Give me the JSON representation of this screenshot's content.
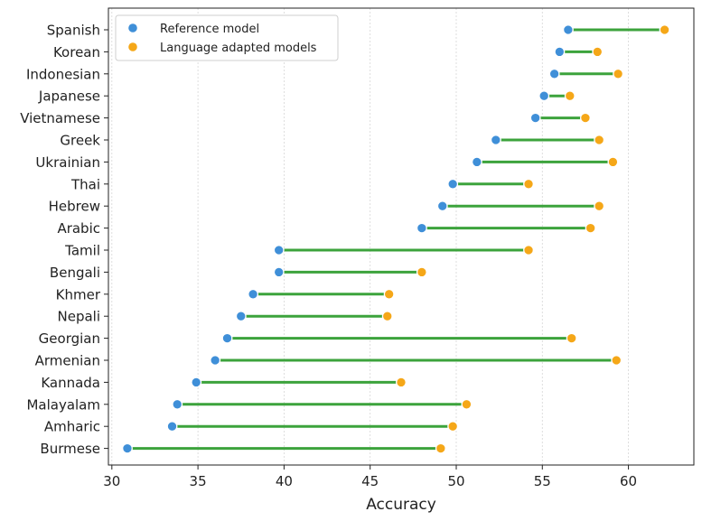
{
  "chart_data": {
    "type": "dumbbell",
    "title": "",
    "xlabel": "Accuracy",
    "ylabel": "",
    "xlim": [
      29.8,
      63.8
    ],
    "xticks": [
      30,
      35,
      40,
      45,
      50,
      55,
      60
    ],
    "grid": "vertical-dotted",
    "legend_placement": "top-left",
    "colors": {
      "reference": "#3f8fd8",
      "adapted": "#f5a718",
      "connector": "#3ca33c"
    },
    "legend": [
      "Reference model",
      "Language adapted models"
    ],
    "series": [
      {
        "name": "Reference model",
        "values": [
          56.5,
          56.0,
          55.7,
          55.1,
          54.6,
          52.3,
          51.2,
          49.8,
          49.2,
          48.0,
          39.7,
          39.7,
          38.2,
          37.5,
          36.7,
          36.0,
          34.9,
          33.8,
          33.5,
          30.9
        ]
      },
      {
        "name": "Language adapted models",
        "values": [
          62.1,
          58.2,
          59.4,
          56.6,
          57.5,
          58.3,
          59.1,
          54.2,
          58.3,
          57.8,
          54.2,
          48.0,
          46.1,
          46.0,
          56.7,
          59.3,
          46.8,
          50.6,
          49.8,
          49.1
        ]
      }
    ],
    "categories": [
      "Spanish",
      "Korean",
      "Indonesian",
      "Japanese",
      "Vietnamese",
      "Greek",
      "Ukrainian",
      "Thai",
      "Hebrew",
      "Arabic",
      "Tamil",
      "Bengali",
      "Khmer",
      "Nepali",
      "Georgian",
      "Armenian",
      "Kannada",
      "Malayalam",
      "Amharic",
      "Burmese"
    ]
  }
}
